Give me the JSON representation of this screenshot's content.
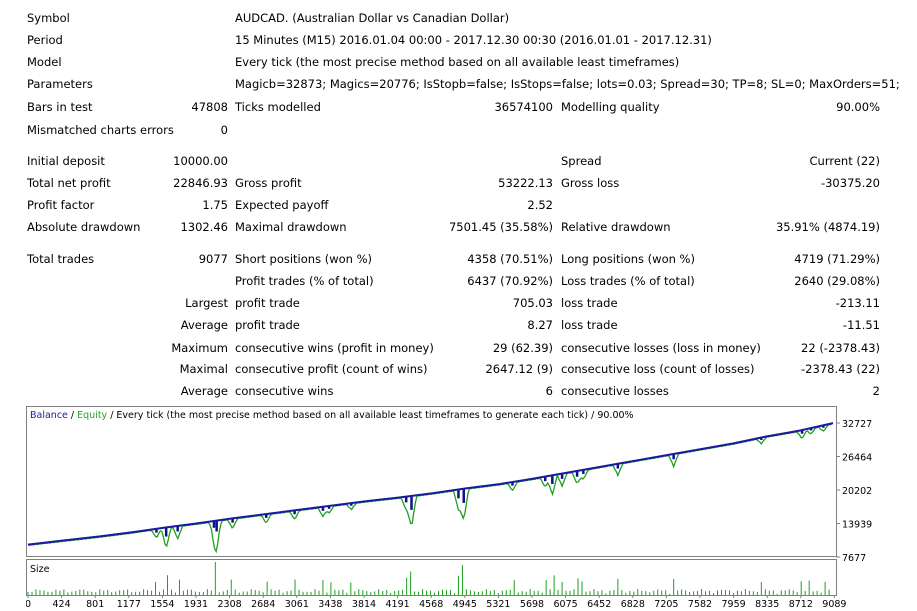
{
  "header": {
    "symbol_label": "Symbol",
    "symbol_value": "AUDCAD. (Australian Dollar vs Canadian Dollar)",
    "period_label": "Period",
    "period_value": "15 Minutes (M15) 2016.01.04 00:00 - 2017.12.30 00:30 (2016.01.01 - 2017.12.31)",
    "model_label": "Model",
    "model_value": "Every tick (the most precise method based on all available least timeframes)",
    "parameters_label": "Parameters",
    "parameters_value": "Magicb=32873; Magics=20776; IsStopb=false; IsStops=false; lots=0.03; Spread=30; TP=8; SL=0; MaxOrders=51;"
  },
  "stats": {
    "bars_label": "Bars in test",
    "bars_value": "47808",
    "ticks_label": "Ticks modelled",
    "ticks_value": "36574100",
    "quality_label": "Modelling quality",
    "quality_value": "90.00%",
    "mismatch_label": "Mismatched charts errors",
    "mismatch_value": "0",
    "deposit_label": "Initial deposit",
    "deposit_value": "10000.00",
    "spread_label": "Spread",
    "spread_value": "Current (22)",
    "netprofit_label": "Total net profit",
    "netprofit_value": "22846.93",
    "grossprofit_label": "Gross profit",
    "grossprofit_value": "53222.13",
    "grossloss_label": "Gross loss",
    "grossloss_value": "-30375.20",
    "pf_label": "Profit factor",
    "pf_value": "1.75",
    "payoff_label": "Expected payoff",
    "payoff_value": "2.52",
    "absdd_label": "Absolute drawdown",
    "absdd_value": "1302.46",
    "maxdd_label": "Maximal drawdown",
    "maxdd_value": "7501.45 (35.58%)",
    "reldd_label": "Relative drawdown",
    "reldd_value": "35.91% (4874.19)",
    "trades_label": "Total trades",
    "trades_value": "9077",
    "short_label": "Short positions (won %)",
    "short_value": "4358 (70.51%)",
    "long_label": "Long positions (won %)",
    "long_value": "4719 (71.29%)",
    "ptrades_label": "Profit trades (% of total)",
    "ptrades_value": "6437 (70.92%)",
    "ltrades_label": "Loss trades (% of total)",
    "ltrades_value": "2640 (29.08%)",
    "largest_label": "Largest",
    "largest_profit_label": "profit trade",
    "largest_profit_value": "705.03",
    "largest_loss_label": "loss trade",
    "largest_loss_value": "-213.11",
    "average_label": "Average",
    "average_profit_label": "profit trade",
    "average_profit_value": "8.27",
    "average_loss_label": "loss trade",
    "average_loss_value": "-11.51",
    "maximum_label": "Maximum",
    "max_wins_label": "consecutive wins (profit in money)",
    "max_wins_value": "29 (62.39)",
    "max_losses_label": "consecutive losses (loss in money)",
    "max_losses_value": "22 (-2378.43)",
    "maximal_label": "Maximal",
    "maximal_profit_label": "consecutive profit (count of wins)",
    "maximal_profit_value": "2647.12 (9)",
    "maximal_loss_label": "consecutive loss (count of losses)",
    "maximal_loss_value": "-2378.43 (22)",
    "avg2_label": "Average",
    "avg_wins_label": "consecutive wins",
    "avg_wins_value": "6",
    "avg_losses_label": "consecutive losses",
    "avg_losses_value": "2"
  },
  "chart_data": {
    "type": "line",
    "legend": {
      "balance": "Balance",
      "sep1": " / ",
      "equity": "Equity",
      "rest": " / Every tick (the most precise method based on all available least timeframes to generate each tick) / 90.00%"
    },
    "y_ticks": [
      "32727",
      "26464",
      "20202",
      "13939",
      "7677"
    ],
    "x_ticks": [
      "0",
      "424",
      "801",
      "1177",
      "1554",
      "1931",
      "2308",
      "2684",
      "3061",
      "3438",
      "3814",
      "4191",
      "4568",
      "4945",
      "5321",
      "5698",
      "6075",
      "6452",
      "6828",
      "7205",
      "7582",
      "7959",
      "8335",
      "8712",
      "9089"
    ],
    "size_label": "Size",
    "x_range": [
      0,
      9089
    ],
    "y_range": [
      7677,
      32727
    ],
    "balance": [
      [
        0,
        10000
      ],
      [
        424,
        10800
      ],
      [
        801,
        11500
      ],
      [
        1177,
        12300
      ],
      [
        1554,
        13200
      ],
      [
        1931,
        14000
      ],
      [
        2308,
        14900
      ],
      [
        2684,
        15700
      ],
      [
        3061,
        16500
      ],
      [
        3438,
        17300
      ],
      [
        3814,
        18100
      ],
      [
        4191,
        18800
      ],
      [
        4568,
        19600
      ],
      [
        4945,
        20500
      ],
      [
        5321,
        21300
      ],
      [
        5698,
        22300
      ],
      [
        6075,
        23400
      ],
      [
        6452,
        24500
      ],
      [
        6828,
        25600
      ],
      [
        7205,
        26700
      ],
      [
        7582,
        27800
      ],
      [
        7959,
        28900
      ],
      [
        8335,
        30200
      ],
      [
        8712,
        31300
      ],
      [
        9089,
        32700
      ]
    ],
    "equity_dips": [
      [
        1450,
        -1600
      ],
      [
        1560,
        -3800
      ],
      [
        1690,
        -2300
      ],
      [
        2100,
        -2800
      ],
      [
        2130,
        -4500
      ],
      [
        2310,
        -1800
      ],
      [
        2690,
        -1600
      ],
      [
        3010,
        -1600
      ],
      [
        3330,
        -1700
      ],
      [
        3400,
        -1200
      ],
      [
        3650,
        -1100
      ],
      [
        4270,
        -2400
      ],
      [
        4330,
        -5800
      ],
      [
        4860,
        -3700
      ],
      [
        4920,
        -5900
      ],
      [
        5470,
        -1500
      ],
      [
        5840,
        -1900
      ],
      [
        5920,
        -3600
      ],
      [
        6030,
        -2200
      ],
      [
        6200,
        -2400
      ],
      [
        6270,
        -1700
      ],
      [
        6660,
        -2000
      ],
      [
        7290,
        -2200
      ],
      [
        8280,
        -1000
      ],
      [
        8740,
        -1500
      ],
      [
        8840,
        -1000
      ],
      [
        8980,
        -1000
      ]
    ],
    "colors": {
      "balance": "#1a1aa0",
      "equity": "#1ea01e",
      "legend_balance": "#1a1aa0",
      "legend_equity": "#28a028"
    }
  }
}
